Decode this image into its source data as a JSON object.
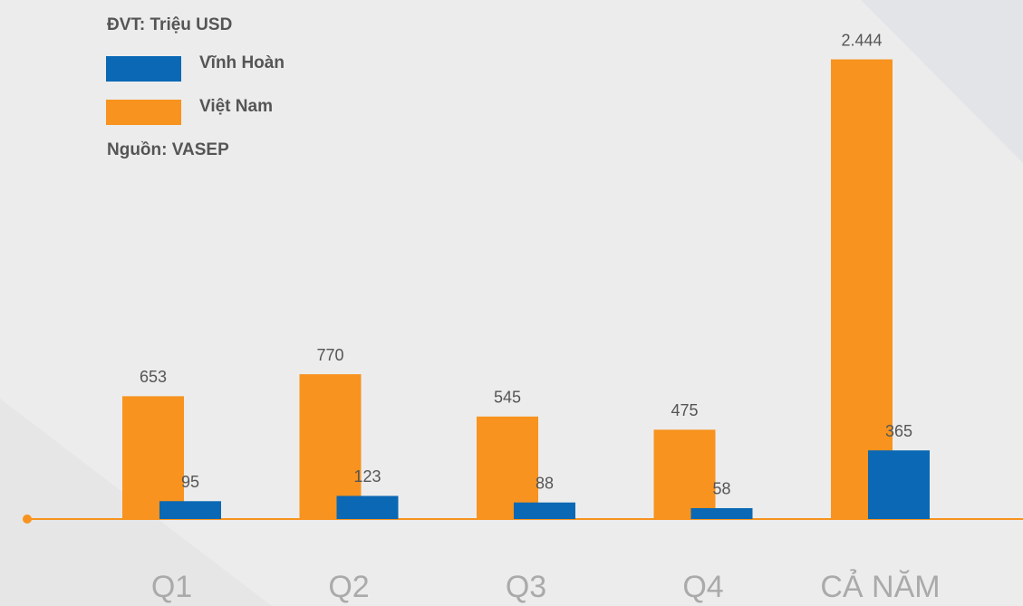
{
  "chart_data": {
    "type": "bar",
    "title": "ĐVT: Triệu USD",
    "source": "Nguồn: VASEP",
    "categories": [
      "Q1",
      "Q2",
      "Q3",
      "Q4",
      "CẢ NĂM"
    ],
    "series": [
      {
        "name": "Việt Nam",
        "color": "#f7931e",
        "values": [
          653,
          770,
          545,
          475,
          2444
        ],
        "value_labels": [
          "653",
          "770",
          "545",
          "475",
          "2.444"
        ]
      },
      {
        "name": "Vĩnh Hoàn",
        "color": "#0a68b4",
        "values": [
          95,
          123,
          88,
          58,
          365
        ],
        "value_labels": [
          "95",
          "123",
          "88",
          "58",
          "365"
        ]
      }
    ],
    "ylim": [
      0,
      2750
    ]
  }
}
